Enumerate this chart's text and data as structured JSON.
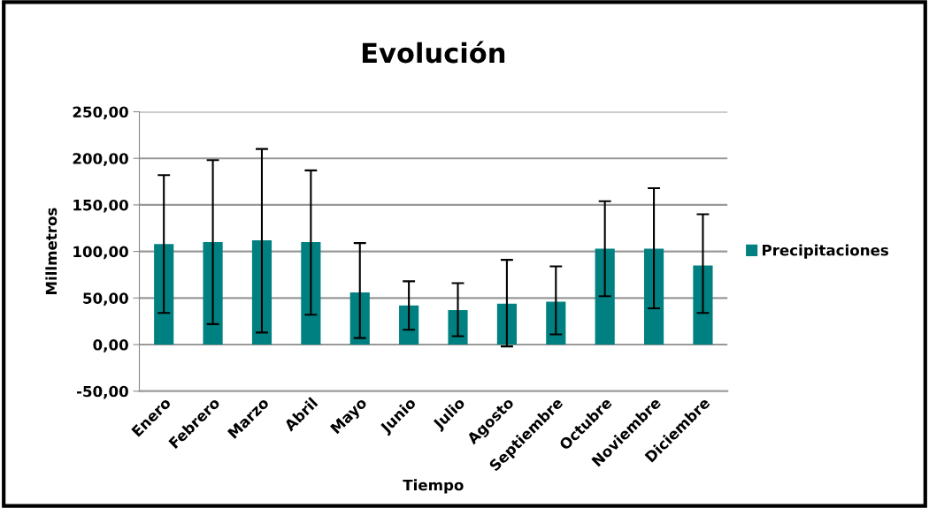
{
  "chart_data": {
    "type": "bar",
    "title": "Evolución",
    "xlabel": "Tiempo",
    "ylabel": "Millmetros",
    "categories": [
      "Enero",
      "Febrero",
      "Marzo",
      "Abril",
      "Mayo",
      "Junio",
      "Julio",
      "Agosto",
      "Septiembre",
      "Octubre",
      "Noviembre",
      "Diciembre"
    ],
    "series": [
      {
        "name": "Precipitaciones",
        "color": "#008080",
        "values": [
          108,
          110,
          112,
          110,
          56,
          42,
          37,
          44,
          46,
          103,
          103,
          85
        ],
        "errors": [
          [
            34,
            182
          ],
          [
            22,
            198
          ],
          [
            13,
            210
          ],
          [
            32,
            187
          ],
          [
            7,
            109
          ],
          [
            16,
            68
          ],
          [
            9,
            66
          ],
          [
            -2,
            91
          ],
          [
            11,
            84
          ],
          [
            52,
            154
          ],
          [
            39,
            168
          ],
          [
            34,
            140
          ]
        ]
      }
    ],
    "ylim": [
      -50,
      250
    ],
    "yticks": [
      {
        "value": -50,
        "label": "-50,00"
      },
      {
        "value": 0,
        "label": "0,00"
      },
      {
        "value": 50,
        "label": "50,00"
      },
      {
        "value": 100,
        "label": "100,00"
      },
      {
        "value": 150,
        "label": "150,00"
      },
      {
        "value": 200,
        "label": "200,00"
      },
      {
        "value": 250,
        "label": "250,00"
      }
    ],
    "grid": "y",
    "legend": "right"
  }
}
